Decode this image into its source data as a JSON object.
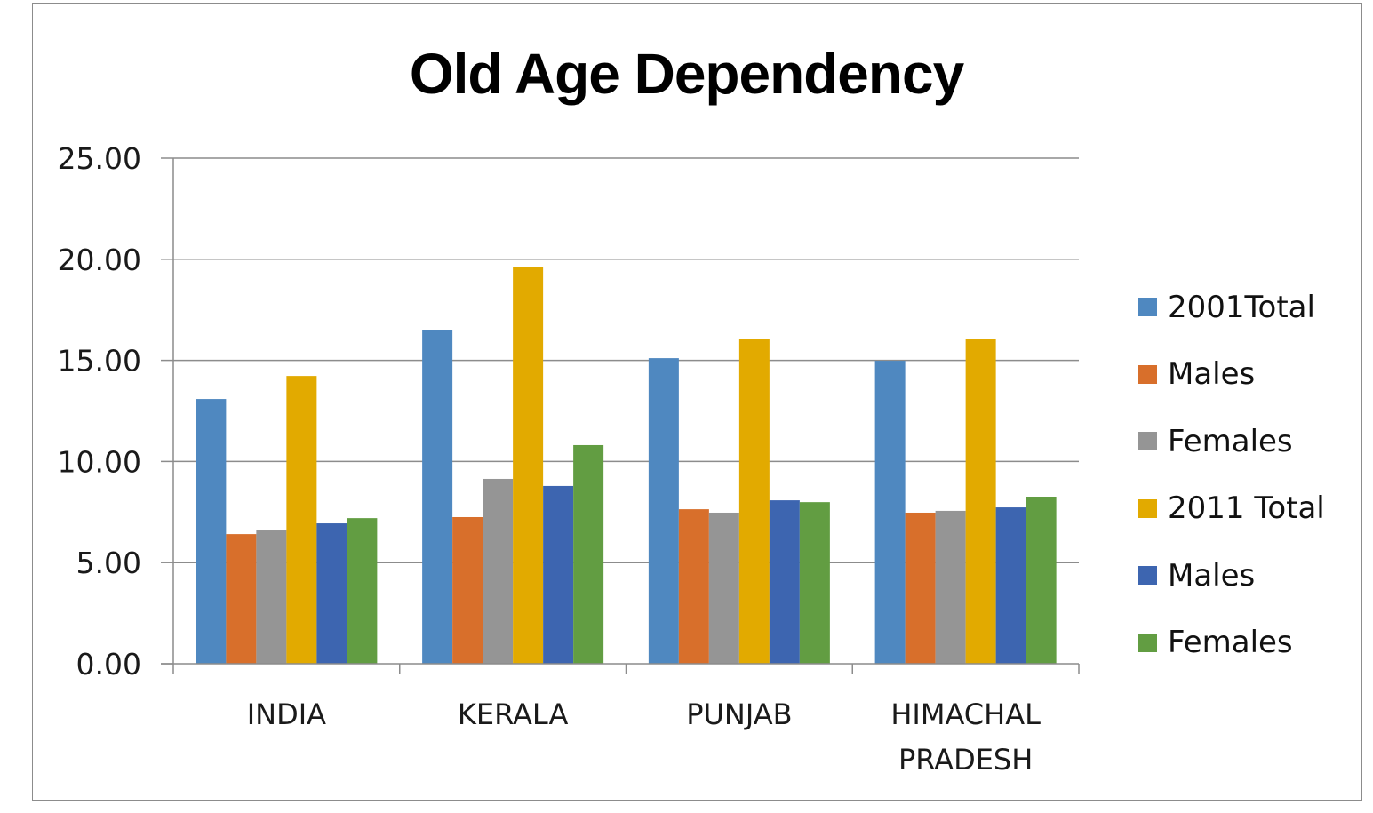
{
  "chart_data": {
    "type": "bar",
    "title": "Old Age Dependency",
    "xlabel": "",
    "ylabel": "",
    "ylim": [
      0,
      25
    ],
    "yticks": [
      "0.00",
      "5.00",
      "10.00",
      "15.00",
      "20.00",
      "25.00"
    ],
    "grid": true,
    "legend_position": "right",
    "categories": [
      "INDIA",
      "KERALA",
      "PUNJAB",
      "HIMACHAL PRADESH"
    ],
    "category_label_lines": [
      [
        "INDIA"
      ],
      [
        "KERALA"
      ],
      [
        "PUNJAB"
      ],
      [
        "HIMACHAL",
        "PRADESH"
      ]
    ],
    "series": [
      {
        "name": "2001Total",
        "color": "#4f88c0",
        "values": [
          13.09,
          16.52,
          15.11,
          14.98
        ]
      },
      {
        "name": "Males",
        "color": "#d86f2b",
        "values": [
          6.41,
          7.25,
          7.64,
          7.47
        ]
      },
      {
        "name": "Females",
        "color": "#959595",
        "values": [
          6.59,
          9.14,
          7.47,
          7.56
        ]
      },
      {
        "name": "2011 Total",
        "color": "#e2aa00",
        "values": [
          14.23,
          19.6,
          16.08,
          16.08
        ]
      },
      {
        "name": "Males",
        "color": "#3d65b0",
        "values": [
          6.94,
          8.79,
          8.08,
          7.73
        ]
      },
      {
        "name": "Females",
        "color": "#629d42",
        "values": [
          7.2,
          10.81,
          7.99,
          8.26
        ]
      }
    ]
  }
}
